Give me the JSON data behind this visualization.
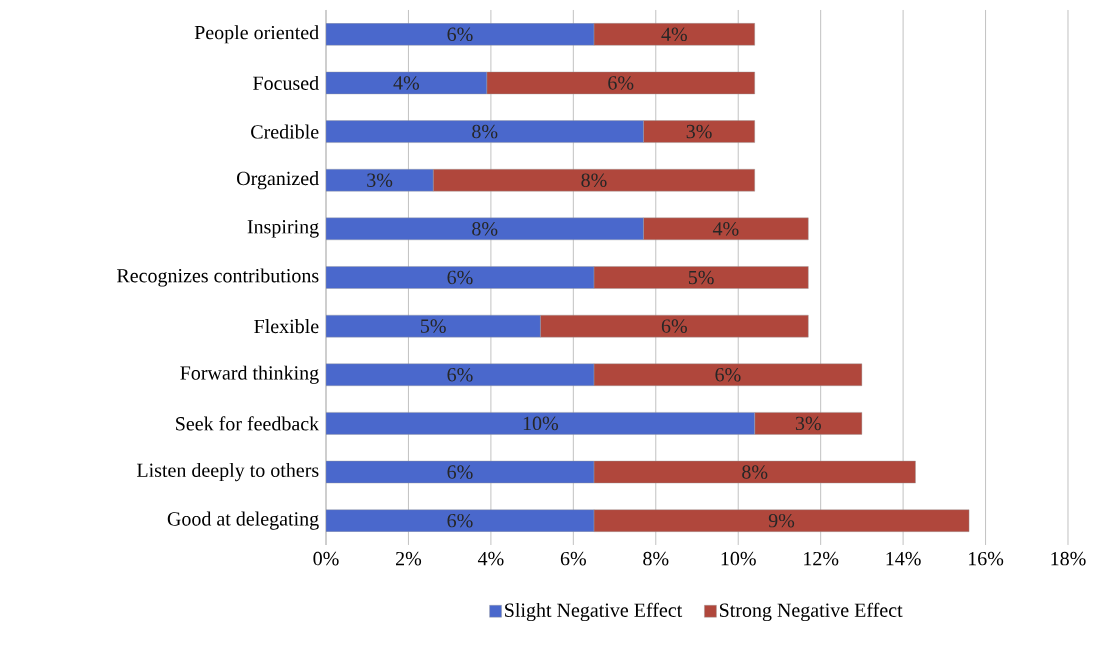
{
  "chart_data": {
    "type": "bar",
    "orientation": "horizontal",
    "stacked": true,
    "categories": [
      "People oriented",
      "Focused",
      "Credible",
      "Organized",
      "Inspiring",
      "Recognizes contributions",
      "Flexible",
      "Forward thinking",
      "Seek for feedback",
      "Listen deeply to others",
      "Good at delegating"
    ],
    "series": [
      {
        "name": "Slight Negative Effect",
        "color": "#4a68cc",
        "values": [
          6.5,
          3.9,
          7.7,
          2.6,
          7.7,
          6.5,
          5.2,
          6.5,
          10.4,
          6.5,
          6.5
        ],
        "value_labels": [
          "6%",
          "4%",
          "8%",
          "3%",
          "8%",
          "6%",
          "5%",
          "6%",
          "10%",
          "6%",
          "6%"
        ]
      },
      {
        "name": "Strong Negative Effect",
        "color": "#b0473c",
        "values": [
          3.9,
          6.5,
          2.7,
          7.8,
          4.0,
          5.2,
          6.5,
          6.5,
          2.6,
          7.8,
          9.1
        ],
        "value_labels": [
          "4%",
          "6%",
          "3%",
          "8%",
          "4%",
          "5%",
          "6%",
          "6%",
          "3%",
          "8%",
          "9%"
        ]
      }
    ],
    "xlim": [
      0,
      18
    ],
    "xticks": [
      {
        "value": 0,
        "label": "0%"
      },
      {
        "value": 2,
        "label": "2%"
      },
      {
        "value": 4,
        "label": "4%"
      },
      {
        "value": 6,
        "label": "6%"
      },
      {
        "value": 8,
        "label": "8%"
      },
      {
        "value": 10,
        "label": "10%"
      },
      {
        "value": 12,
        "label": "12%"
      },
      {
        "value": 14,
        "label": "14%"
      },
      {
        "value": 16,
        "label": "16%"
      },
      {
        "value": 18,
        "label": "18%"
      }
    ],
    "grid": "x",
    "legend": "bottom"
  }
}
